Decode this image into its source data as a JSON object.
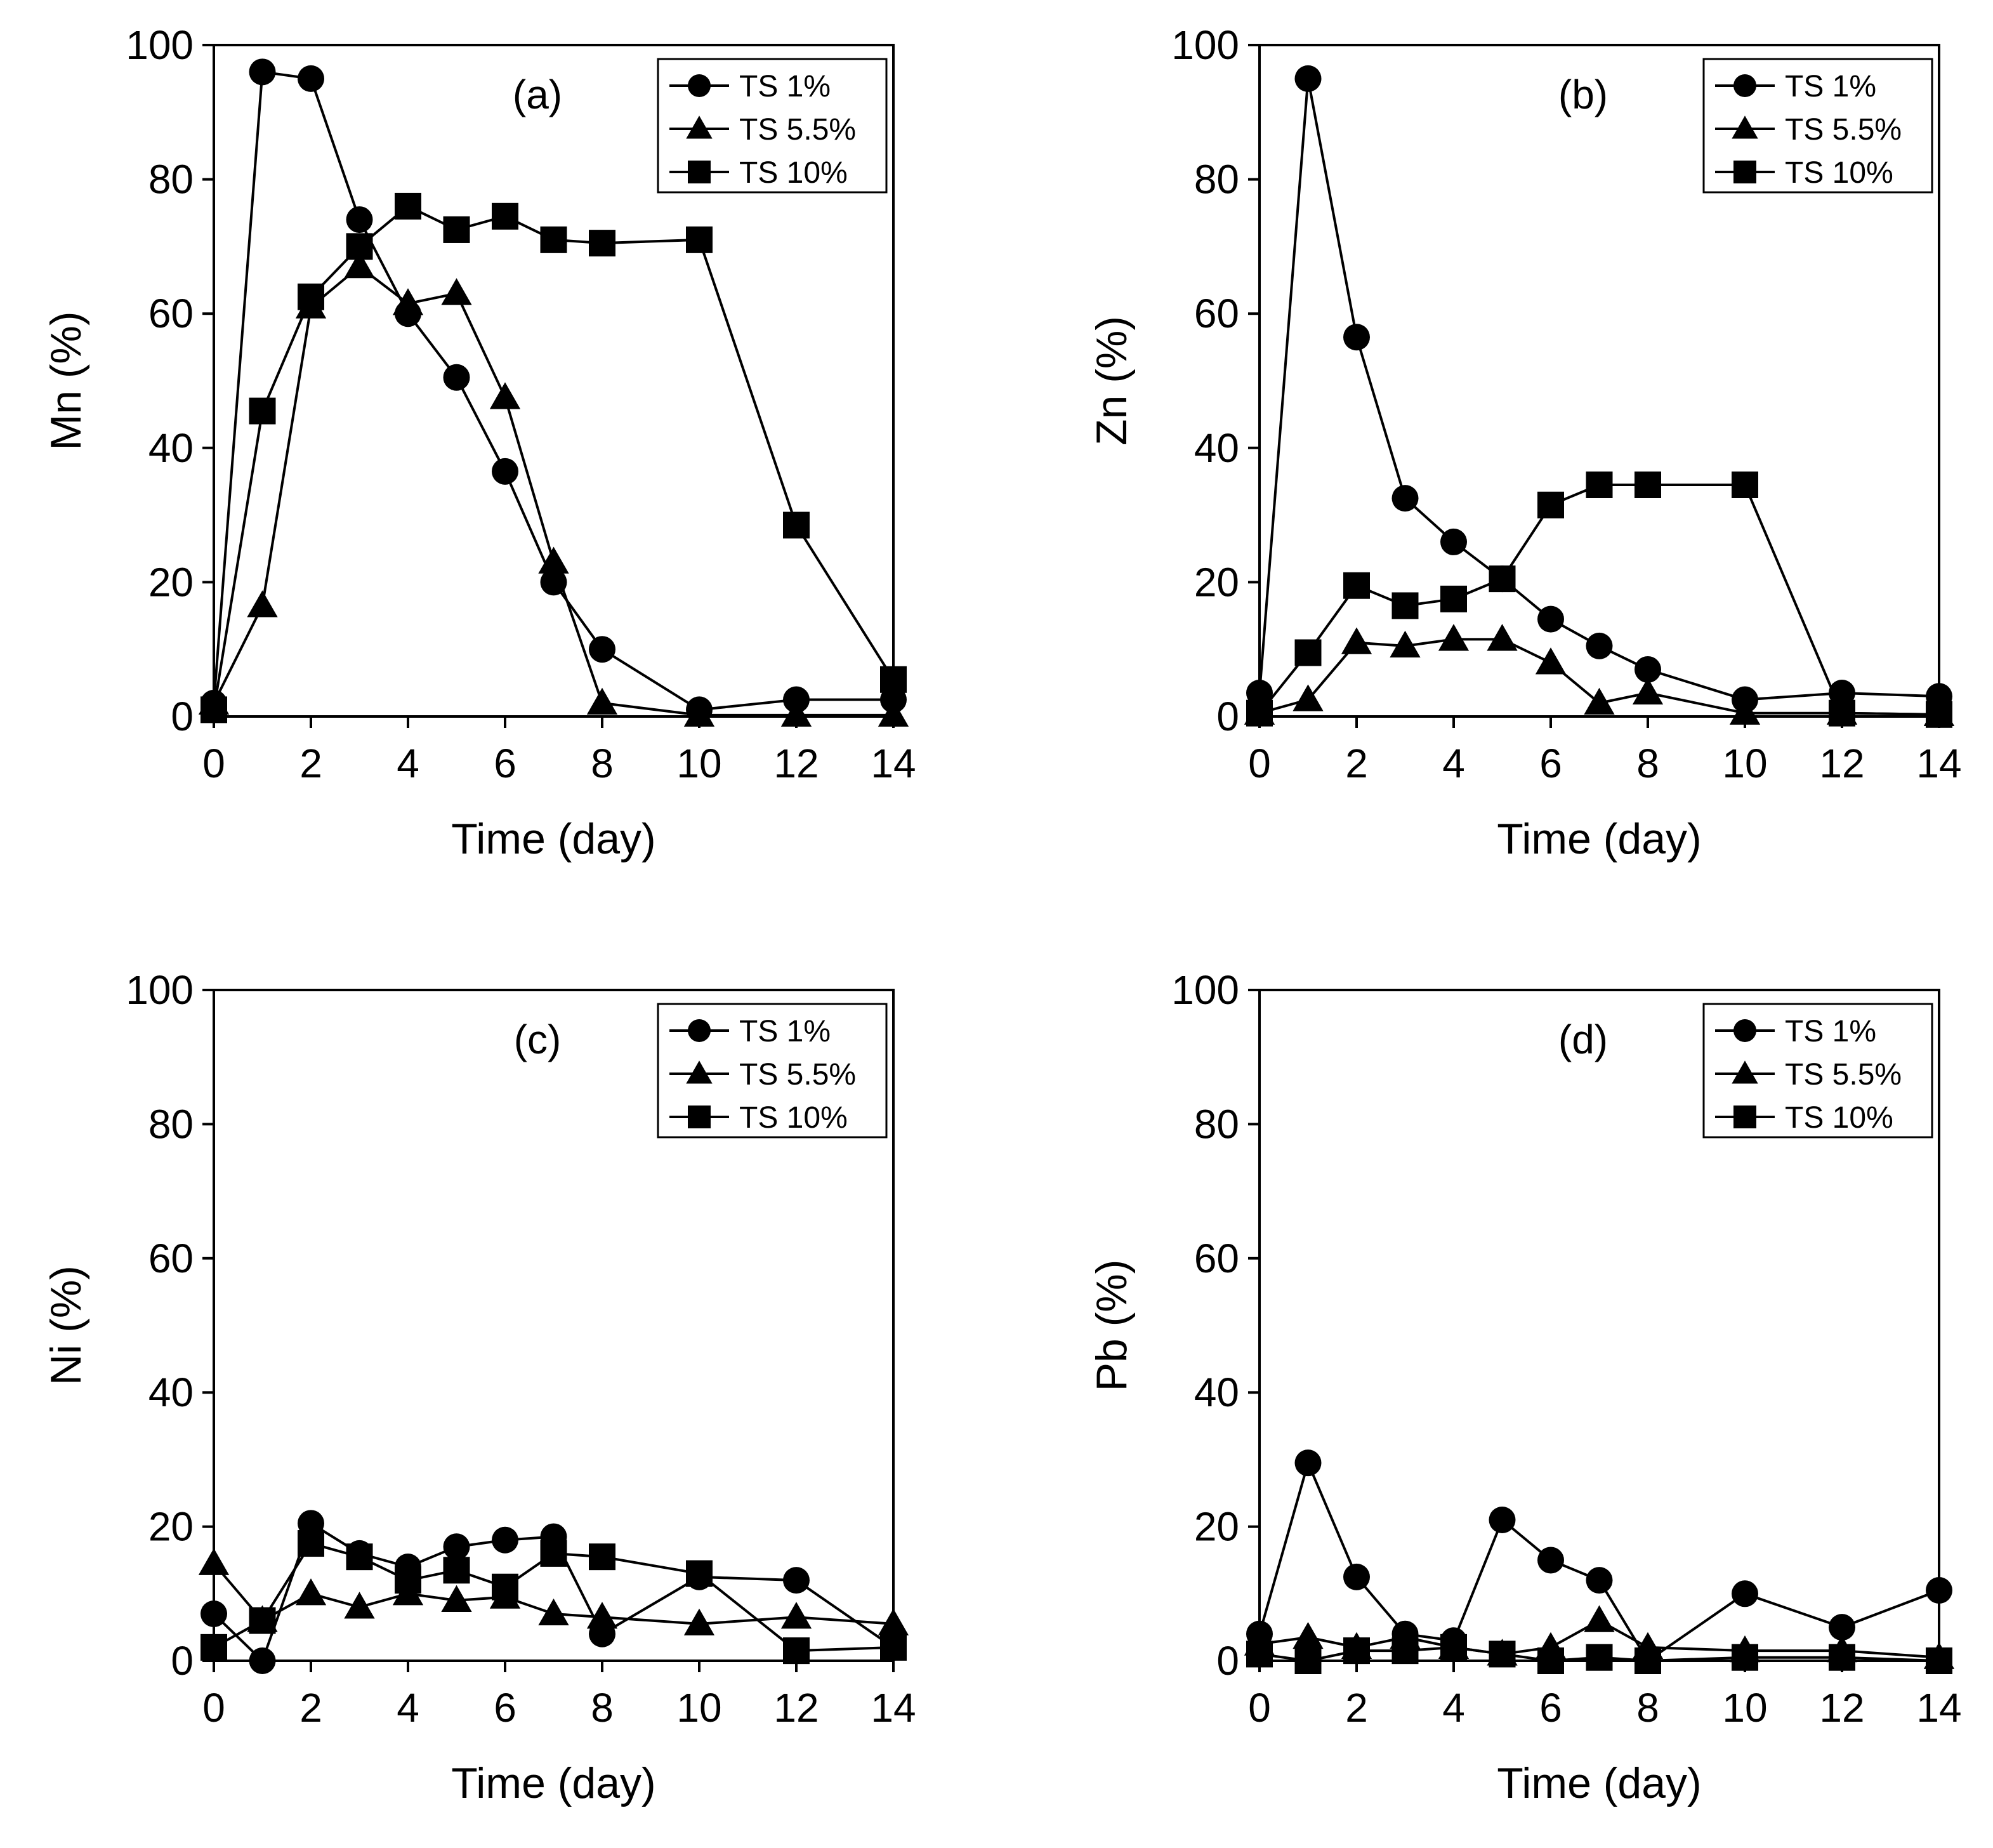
{
  "chart_data": [
    {
      "type": "line",
      "panel": "(a)",
      "ylabel": "Mn (%)",
      "xlabel": "Time (day)",
      "xlim": [
        0,
        14
      ],
      "ylim": [
        0,
        100
      ],
      "xticks": [
        0,
        2,
        4,
        6,
        8,
        10,
        12,
        14
      ],
      "yticks": [
        0,
        20,
        40,
        60,
        80,
        100
      ],
      "legend_position": "top-right",
      "series": [
        {
          "name": "TS 1%",
          "marker": "circle",
          "x": [
            0,
            1,
            2,
            3,
            4,
            5,
            6,
            7,
            8,
            10,
            12,
            14
          ],
          "y": [
            2,
            96,
            95,
            74,
            60,
            50.5,
            36.5,
            20,
            10,
            1,
            2.5,
            2.5
          ]
        },
        {
          "name": "TS 5.5%",
          "marker": "triangle",
          "x": [
            0,
            1,
            2,
            3,
            4,
            5,
            6,
            7,
            8,
            10,
            12,
            14
          ],
          "y": [
            2,
            16.5,
            61,
            67,
            61.5,
            63,
            47.5,
            23,
            2,
            0.2,
            0.2,
            0.2
          ]
        },
        {
          "name": "TS 10%",
          "marker": "square",
          "x": [
            0,
            1,
            2,
            3,
            4,
            5,
            6,
            7,
            8,
            10,
            12,
            14
          ],
          "y": [
            1,
            45.5,
            62.5,
            70,
            76,
            72.5,
            74.5,
            71,
            70.5,
            71,
            28.5,
            5.5
          ]
        }
      ]
    },
    {
      "type": "line",
      "panel": "(b)",
      "ylabel": "Zn (%)",
      "xlabel": "Time (day)",
      "xlim": [
        0,
        14
      ],
      "ylim": [
        0,
        100
      ],
      "xticks": [
        0,
        2,
        4,
        6,
        8,
        10,
        12,
        14
      ],
      "yticks": [
        0,
        20,
        40,
        60,
        80,
        100
      ],
      "legend_position": "top-right",
      "series": [
        {
          "name": "TS 1%",
          "marker": "circle",
          "x": [
            0,
            1,
            2,
            3,
            4,
            5,
            6,
            7,
            8,
            10,
            12,
            14
          ],
          "y": [
            3.5,
            95,
            56.5,
            32.5,
            26,
            20.5,
            14.5,
            10.5,
            7,
            2.5,
            3.5,
            3
          ]
        },
        {
          "name": "TS 5.5%",
          "marker": "triangle",
          "x": [
            0,
            1,
            2,
            3,
            4,
            5,
            6,
            7,
            8,
            10,
            12,
            14
          ],
          "y": [
            0.5,
            2.5,
            11,
            10.5,
            11.5,
            11.5,
            8,
            2,
            3.5,
            0.5,
            0.5,
            0.3
          ]
        },
        {
          "name": "TS 10%",
          "marker": "square",
          "x": [
            0,
            1,
            2,
            3,
            4,
            5,
            6,
            7,
            8,
            10,
            12,
            14
          ],
          "y": [
            0.5,
            9.5,
            19.5,
            16.5,
            17.5,
            20.5,
            31.5,
            34.5,
            34.5,
            34.5,
            0.5,
            0.3
          ]
        }
      ]
    },
    {
      "type": "line",
      "panel": "(c)",
      "ylabel": "Ni (%)",
      "xlabel": "Time (day)",
      "xlim": [
        0,
        14
      ],
      "ylim": [
        0,
        100
      ],
      "xticks": [
        0,
        2,
        4,
        6,
        8,
        10,
        12,
        14
      ],
      "yticks": [
        0,
        20,
        40,
        60,
        80,
        100
      ],
      "legend_position": "top-right",
      "series": [
        {
          "name": "TS 1%",
          "marker": "circle",
          "x": [
            0,
            1,
            2,
            3,
            4,
            5,
            6,
            7,
            8,
            10,
            12,
            14
          ],
          "y": [
            7,
            0,
            20.5,
            16,
            14,
            17,
            18,
            18.5,
            4,
            12.5,
            12,
            2
          ]
        },
        {
          "name": "TS 5.5%",
          "marker": "triangle",
          "x": [
            0,
            1,
            2,
            3,
            4,
            5,
            6,
            7,
            8,
            10,
            12,
            14
          ],
          "y": [
            14.5,
            6,
            10,
            8,
            10,
            9,
            9.5,
            7,
            6.5,
            5.5,
            6.5,
            5.5
          ]
        },
        {
          "name": "TS 10%",
          "marker": "square",
          "x": [
            0,
            1,
            2,
            3,
            4,
            5,
            6,
            7,
            8,
            10,
            12,
            14
          ],
          "y": [
            2,
            6,
            17.5,
            15.5,
            12,
            13.5,
            11,
            16,
            15.5,
            13,
            1.5,
            2
          ]
        }
      ]
    },
    {
      "type": "line",
      "panel": "(d)",
      "ylabel": "Pb (%)",
      "xlabel": "Time (day)",
      "xlim": [
        0,
        14
      ],
      "ylim": [
        0,
        100
      ],
      "xticks": [
        0,
        2,
        4,
        6,
        8,
        10,
        12,
        14
      ],
      "yticks": [
        0,
        20,
        40,
        60,
        80,
        100
      ],
      "legend_position": "top-right",
      "series": [
        {
          "name": "TS 1%",
          "marker": "circle",
          "x": [
            0,
            1,
            2,
            3,
            4,
            5,
            6,
            7,
            8,
            10,
            12,
            14
          ],
          "y": [
            4,
            29.5,
            12.5,
            4,
            3,
            21,
            15,
            12,
            0,
            10,
            5,
            10.5
          ]
        },
        {
          "name": "TS 5.5%",
          "marker": "triangle",
          "x": [
            0,
            1,
            2,
            3,
            4,
            5,
            6,
            7,
            8,
            10,
            12,
            14
          ],
          "y": [
            2.5,
            3.5,
            2,
            3.5,
            2,
            1,
            2,
            6,
            2,
            1.5,
            1.5,
            0.5
          ]
        },
        {
          "name": "TS 10%",
          "marker": "square",
          "x": [
            0,
            1,
            2,
            3,
            4,
            5,
            6,
            7,
            8,
            10,
            12,
            14
          ],
          "y": [
            1,
            0,
            1.5,
            1.5,
            2,
            1,
            0,
            0.5,
            0,
            0.5,
            0.5,
            0
          ]
        }
      ]
    }
  ]
}
